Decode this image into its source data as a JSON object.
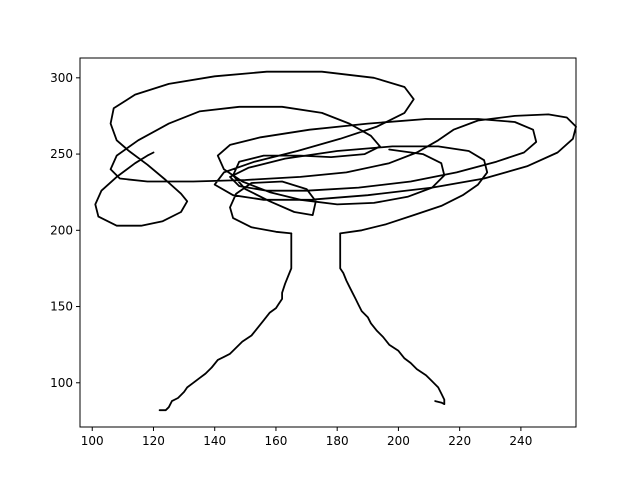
{
  "chart_data": {
    "type": "line",
    "title": "",
    "xlabel": "",
    "ylabel": "",
    "xlim": [
      96,
      258
    ],
    "ylim": [
      71,
      313
    ],
    "grid": false,
    "legend": "none",
    "line_color": "#000000",
    "x_ticks": [
      100,
      120,
      140,
      160,
      180,
      200,
      220,
      240
    ],
    "y_ticks": [
      100,
      150,
      200,
      250,
      300
    ],
    "x_tick_labels": [
      "100",
      "120",
      "140",
      "160",
      "180",
      "200",
      "220",
      "240"
    ],
    "y_tick_labels": [
      "100",
      "150",
      "200",
      "250",
      "300"
    ],
    "series": [
      {
        "points": [
          [
            122,
            82
          ],
          [
            124,
            82
          ],
          [
            125,
            84
          ],
          [
            126,
            88
          ],
          [
            128,
            90
          ],
          [
            129,
            92
          ],
          [
            130,
            94
          ],
          [
            131,
            97
          ],
          [
            133,
            100
          ],
          [
            135,
            103
          ],
          [
            137,
            106
          ],
          [
            139,
            110
          ],
          [
            141,
            115
          ],
          [
            143,
            117
          ],
          [
            145,
            119
          ],
          [
            147,
            123
          ],
          [
            149,
            127
          ],
          [
            152,
            131
          ],
          [
            154,
            136
          ],
          [
            156,
            141
          ],
          [
            158,
            146
          ],
          [
            160,
            149
          ],
          [
            161,
            152
          ],
          [
            162,
            155
          ],
          [
            162,
            159
          ],
          [
            163,
            165
          ],
          [
            164,
            170
          ],
          [
            165,
            175
          ],
          [
            165,
            198
          ]
        ]
      },
      {
        "points": [
          [
            181,
            198
          ],
          [
            181,
            175
          ],
          [
            182,
            172
          ],
          [
            183,
            167
          ],
          [
            184,
            163
          ],
          [
            185,
            159
          ],
          [
            186,
            155
          ],
          [
            187,
            151
          ],
          [
            188,
            147
          ],
          [
            190,
            143
          ],
          [
            191,
            139
          ],
          [
            193,
            134
          ],
          [
            195,
            130
          ],
          [
            197,
            125
          ],
          [
            200,
            121
          ],
          [
            202,
            116
          ],
          [
            204,
            113
          ],
          [
            206,
            109
          ],
          [
            209,
            105
          ],
          [
            211,
            101
          ],
          [
            213,
            97
          ],
          [
            214,
            93
          ],
          [
            215,
            89
          ],
          [
            215,
            86
          ]
        ]
      },
      {
        "points": [
          [
            212,
            88
          ],
          [
            214,
            87
          ],
          [
            215,
            86
          ]
        ]
      },
      {
        "points": [
          [
            165,
            198
          ],
          [
            160,
            199
          ],
          [
            152,
            202
          ],
          [
            146,
            208
          ],
          [
            145,
            215
          ],
          [
            147,
            224
          ],
          [
            152,
            231
          ],
          [
            162,
            232
          ],
          [
            170,
            227
          ],
          [
            173,
            219
          ],
          [
            172,
            210
          ],
          [
            166,
            212
          ],
          [
            158,
            219
          ],
          [
            150,
            227
          ],
          [
            146,
            236
          ],
          [
            148,
            245
          ],
          [
            156,
            249
          ],
          [
            168,
            249
          ],
          [
            178,
            248
          ],
          [
            189,
            250
          ],
          [
            194,
            255
          ],
          [
            191,
            262
          ],
          [
            184,
            270
          ],
          [
            175,
            277
          ],
          [
            162,
            281
          ],
          [
            148,
            281
          ],
          [
            135,
            278
          ],
          [
            125,
            270
          ],
          [
            115,
            259
          ],
          [
            108,
            249
          ],
          [
            106,
            240
          ],
          [
            109,
            234
          ],
          [
            118,
            232
          ],
          [
            133,
            232
          ],
          [
            150,
            233
          ],
          [
            168,
            235
          ],
          [
            183,
            238
          ],
          [
            197,
            244
          ],
          [
            206,
            251
          ],
          [
            213,
            259
          ],
          [
            218,
            266
          ],
          [
            226,
            272
          ],
          [
            238,
            275
          ],
          [
            249,
            276
          ],
          [
            255,
            274
          ],
          [
            258,
            268
          ],
          [
            257,
            260
          ],
          [
            252,
            251
          ],
          [
            242,
            242
          ],
          [
            228,
            234
          ],
          [
            211,
            228
          ],
          [
            190,
            223
          ],
          [
            171,
            220
          ],
          [
            156,
            220
          ],
          [
            146,
            223
          ],
          [
            140,
            230
          ],
          [
            143,
            238
          ],
          [
            153,
            245
          ],
          [
            167,
            252
          ],
          [
            181,
            260
          ],
          [
            193,
            268
          ],
          [
            202,
            277
          ],
          [
            205,
            286
          ],
          [
            202,
            294
          ],
          [
            192,
            300
          ],
          [
            175,
            304
          ],
          [
            157,
            304
          ],
          [
            140,
            301
          ],
          [
            125,
            296
          ],
          [
            114,
            289
          ],
          [
            107,
            280
          ],
          [
            106,
            270
          ],
          [
            108,
            259
          ],
          [
            112,
            252
          ],
          [
            118,
            243
          ],
          [
            124,
            233
          ],
          [
            129,
            224
          ],
          [
            131,
            219
          ],
          [
            129,
            212
          ],
          [
            123,
            206
          ],
          [
            116,
            203
          ],
          [
            108,
            203
          ],
          [
            102,
            209
          ],
          [
            101,
            217
          ],
          [
            103,
            226
          ],
          [
            108,
            235
          ],
          [
            114,
            244
          ],
          [
            118,
            249
          ],
          [
            120,
            251
          ]
        ]
      },
      {
        "points": [
          [
            181,
            198
          ],
          [
            188,
            200
          ],
          [
            196,
            204
          ],
          [
            205,
            210
          ],
          [
            214,
            216
          ],
          [
            221,
            223
          ],
          [
            226,
            230
          ],
          [
            229,
            238
          ],
          [
            228,
            246
          ],
          [
            223,
            252
          ],
          [
            213,
            255
          ],
          [
            198,
            255
          ],
          [
            180,
            252
          ],
          [
            163,
            247
          ],
          [
            151,
            241
          ],
          [
            145,
            235
          ],
          [
            148,
            229
          ],
          [
            157,
            226
          ],
          [
            170,
            226
          ],
          [
            187,
            228
          ],
          [
            204,
            232
          ],
          [
            219,
            238
          ],
          [
            232,
            245
          ],
          [
            241,
            251
          ],
          [
            245,
            258
          ],
          [
            244,
            266
          ],
          [
            238,
            271
          ],
          [
            226,
            273
          ],
          [
            209,
            273
          ],
          [
            190,
            270
          ],
          [
            171,
            266
          ],
          [
            155,
            261
          ],
          [
            145,
            256
          ],
          [
            141,
            249
          ],
          [
            143,
            240
          ],
          [
            149,
            232
          ],
          [
            158,
            225
          ],
          [
            168,
            220
          ],
          [
            180,
            217
          ],
          [
            192,
            218
          ],
          [
            203,
            222
          ],
          [
            211,
            228
          ],
          [
            215,
            236
          ],
          [
            214,
            244
          ],
          [
            208,
            250
          ],
          [
            197,
            253
          ]
        ]
      }
    ]
  }
}
